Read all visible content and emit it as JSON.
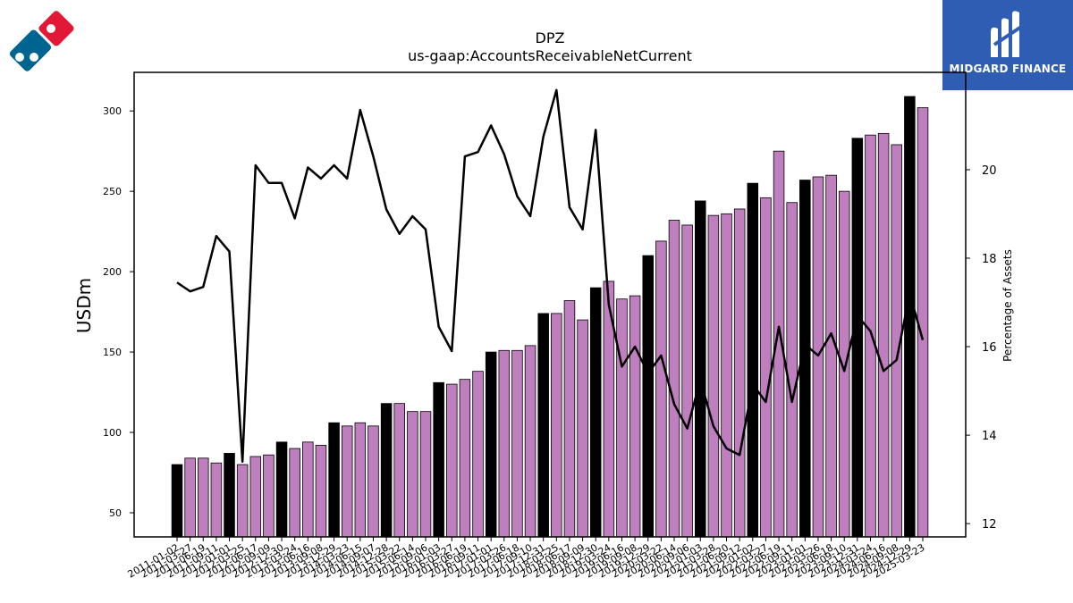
{
  "chart_data": {
    "type": "bar",
    "title": "DPZ",
    "subtitle": "us-gaap:AccountsReceivableNetCurrent",
    "ylabel": "USDm",
    "y2label": "Percentage of Assets",
    "ylim": [
      35,
      324
    ],
    "y2lim": [
      11.7,
      22.2
    ],
    "yticks": [
      50,
      100,
      150,
      200,
      250,
      300
    ],
    "y2ticks": [
      12,
      14,
      16,
      18,
      20
    ],
    "categories": [
      "2011-01-02",
      "2011-03-27",
      "2011-06-19",
      "2011-09-11",
      "2012-01-01",
      "2012-03-25",
      "2012-06-17",
      "2012-09-09",
      "2012-12-30",
      "2013-03-24",
      "2013-06-16",
      "2013-09-08",
      "2013-12-29",
      "2014-03-23",
      "2014-06-15",
      "2014-09-07",
      "2014-12-28",
      "2015-03-22",
      "2015-06-14",
      "2015-09-06",
      "2016-01-03",
      "2016-03-27",
      "2016-06-19",
      "2016-09-11",
      "2017-01-01",
      "2017-03-26",
      "2017-06-18",
      "2017-09-10",
      "2017-12-31",
      "2018-03-25",
      "2018-06-17",
      "2018-09-09",
      "2018-12-30",
      "2019-03-24",
      "2019-06-16",
      "2019-09-08",
      "2019-12-29",
      "2020-03-22",
      "2020-06-14",
      "2020-09-06",
      "2021-01-03",
      "2021-03-28",
      "2021-06-20",
      "2021-09-12",
      "2022-01-02",
      "2022-03-27",
      "2022-06-19",
      "2022-09-11",
      "2023-01-01",
      "2023-03-26",
      "2023-06-18",
      "2023-09-10",
      "2023-12-31",
      "2024-03-24",
      "2024-06-16",
      "2024-09-08",
      "2024-12-29",
      "2025-03-23"
    ],
    "series": [
      {
        "type": "bar",
        "values": [
          80,
          84,
          84,
          81,
          87,
          80,
          85,
          86,
          94,
          90,
          94,
          92,
          106,
          104,
          106,
          104,
          118,
          118,
          113,
          113,
          131,
          130,
          133,
          138,
          150,
          151,
          151,
          154,
          174,
          174,
          182,
          170,
          190,
          194,
          183,
          185,
          210,
          219,
          232,
          229,
          244,
          235,
          236,
          239,
          255,
          246,
          275,
          243,
          257,
          259,
          260,
          250,
          283,
          285,
          286,
          279,
          309,
          302
        ]
      },
      {
        "type": "line",
        "axis": "right",
        "color": "#000000",
        "values": [
          17.45,
          17.25,
          17.35,
          18.5,
          18.15,
          13.4,
          20.1,
          19.7,
          19.7,
          18.9,
          20.05,
          19.8,
          20.1,
          19.8,
          21.35,
          20.3,
          19.1,
          18.55,
          18.95,
          18.65,
          16.45,
          15.9,
          20.3,
          20.4,
          21.0,
          20.35,
          19.4,
          18.95,
          20.75,
          21.8,
          19.15,
          18.65,
          20.9,
          16.95,
          15.55,
          16.0,
          15.4,
          15.8,
          14.7,
          14.15,
          15.25,
          14.2,
          13.7,
          13.55,
          15.15,
          14.75,
          16.45,
          14.75,
          16.05,
          15.8,
          16.3,
          15.45,
          16.7,
          16.35,
          15.45,
          15.7,
          17.2,
          16.15
        ]
      }
    ],
    "highlight_color": "#000000",
    "bar_color": "#bf7fbf",
    "grid": false
  },
  "branding": {
    "name": "MIDGARD FINANCE",
    "color": "#2f5db4",
    "logo_left_icon": "domino-logo-icon",
    "logo_right_icon": "midgard-logo-icon"
  }
}
